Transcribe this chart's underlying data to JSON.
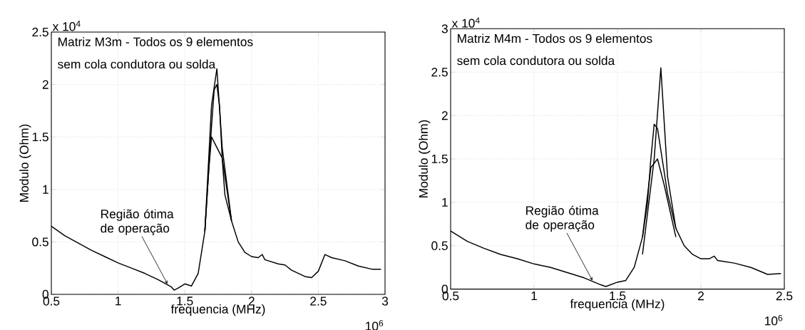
{
  "chart_data": [
    {
      "type": "line",
      "xlabel": "frequencia (MHz)",
      "ylabel": "Modulo (Ohm)",
      "xlim": [
        0.5,
        3
      ],
      "ylim": [
        0,
        2.5
      ],
      "xticks": [
        0.5,
        1,
        1.5,
        2,
        2.5,
        3
      ],
      "yticks": [
        0,
        0.5,
        1,
        1.5,
        2,
        2.5
      ],
      "grid": true,
      "annotations": [
        "Matriz M3m - Todos os 9 elementos",
        "sem cola condutora ou solda",
        "x 10$^{4}$",
        "10$^{6}$",
        {
          "text": "Região ótima de operação",
          "x": 1.37,
          "y": 0.1
        }
      ],
      "series": [
        {
          "color": "#000000",
          "x": [
            0.5,
            0.6,
            0.7,
            0.8,
            0.9,
            1.0,
            1.1,
            1.2,
            1.3,
            1.4,
            1.42,
            1.45,
            1.5,
            1.55,
            1.6,
            1.65,
            1.68,
            1.7,
            1.72,
            1.74,
            1.76,
            1.78,
            1.8,
            1.85,
            1.9,
            1.95,
            2.0,
            2.05,
            2.08,
            2.1,
            2.2,
            2.25,
            2.3,
            2.4,
            2.45,
            2.5,
            2.55,
            2.6,
            2.7,
            2.8,
            2.9,
            2.97
          ],
          "values": [
            0.65,
            0.56,
            0.49,
            0.42,
            0.36,
            0.3,
            0.25,
            0.2,
            0.14,
            0.07,
            0.04,
            0.06,
            0.1,
            0.08,
            0.2,
            0.6,
            1.2,
            1.6,
            1.95,
            2.0,
            1.8,
            1.3,
            0.95,
            0.7,
            0.5,
            0.4,
            0.36,
            0.35,
            0.38,
            0.33,
            0.29,
            0.28,
            0.23,
            0.17,
            0.16,
            0.22,
            0.38,
            0.35,
            0.32,
            0.27,
            0.24,
            0.24
          ]
        },
        {
          "color": "#000000",
          "x": [
            1.65,
            1.7,
            1.74,
            1.78,
            1.85
          ],
          "values": [
            0.6,
            1.8,
            2.15,
            1.4,
            0.7
          ]
        },
        {
          "color": "#000000",
          "x": [
            1.65,
            1.68,
            1.7,
            1.74,
            1.78,
            1.85
          ],
          "values": [
            0.6,
            1.2,
            1.5,
            1.4,
            1.3,
            0.7
          ]
        }
      ]
    },
    {
      "type": "line",
      "xlabel": "frequencia (MHz)",
      "ylabel": "Modulo (Ohm)",
      "xlim": [
        0.5,
        2.5
      ],
      "ylim": [
        0,
        3
      ],
      "xticks": [
        0.5,
        1,
        1.5,
        2,
        2.5
      ],
      "yticks": [
        0,
        0.5,
        1,
        1.5,
        2,
        2.5,
        3
      ],
      "grid": true,
      "annotations": [
        "Matriz M4m - Todos os 9 elementos",
        "sem cola condutora ou solda",
        "x 10$^{4}$",
        "10$^{6}$",
        {
          "text": "Região ótima de operação",
          "x": 1.35,
          "y": 0.1
        }
      ],
      "series": [
        {
          "color": "#000000",
          "x": [
            0.5,
            0.6,
            0.7,
            0.8,
            0.9,
            1.0,
            1.1,
            1.2,
            1.3,
            1.4,
            1.43,
            1.5,
            1.55,
            1.6,
            1.65,
            1.68,
            1.7,
            1.72,
            1.74,
            1.76,
            1.8,
            1.85,
            1.9,
            1.95,
            2.0,
            2.05,
            2.08,
            2.1,
            2.2,
            2.3,
            2.4,
            2.48
          ],
          "values": [
            0.67,
            0.55,
            0.47,
            0.4,
            0.35,
            0.29,
            0.25,
            0.19,
            0.13,
            0.05,
            0.03,
            0.08,
            0.1,
            0.25,
            0.6,
            1.0,
            1.5,
            1.9,
            1.85,
            1.6,
            1.1,
            0.7,
            0.5,
            0.4,
            0.35,
            0.35,
            0.38,
            0.33,
            0.3,
            0.25,
            0.17,
            0.18
          ]
        },
        {
          "color": "#000000",
          "x": [
            1.65,
            1.72,
            1.76,
            1.8,
            1.85
          ],
          "values": [
            0.4,
            1.5,
            2.55,
            1.3,
            0.7
          ]
        },
        {
          "color": "#000000",
          "x": [
            1.65,
            1.7,
            1.74,
            1.78,
            1.85
          ],
          "values": [
            0.6,
            1.4,
            1.5,
            1.2,
            0.6
          ]
        }
      ]
    }
  ]
}
